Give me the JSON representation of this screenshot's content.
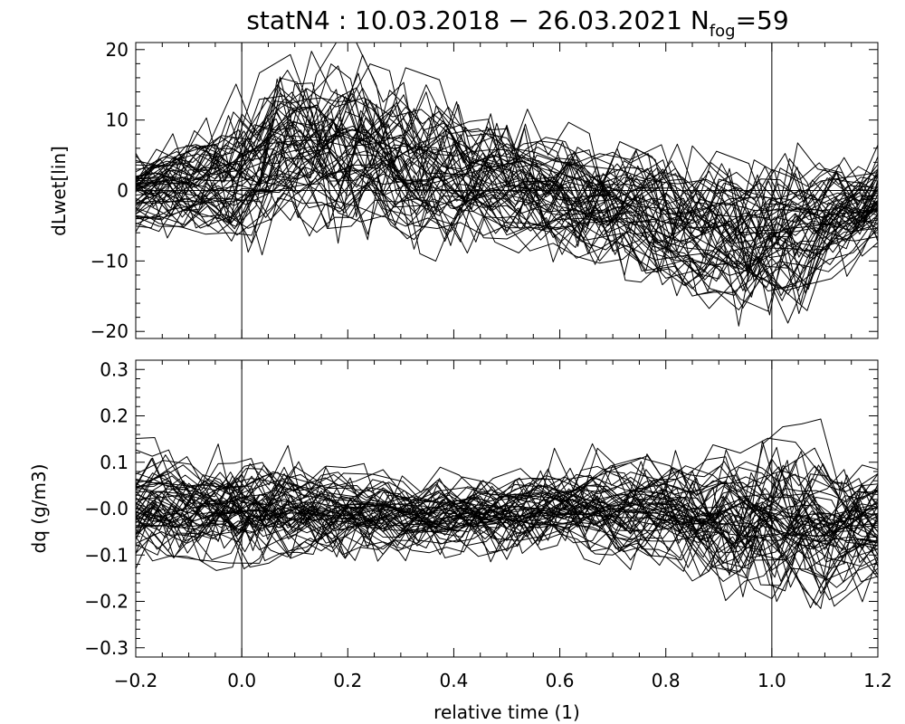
{
  "figure": {
    "title": {
      "prefix": "statN4 : 10.03.2018 − 26.03.2021 N",
      "subscript": "fog",
      "suffix": "=59"
    },
    "n_fog": 59
  },
  "chart_data": [
    {
      "type": "line",
      "name": "top-panel",
      "title": "statN4 : 10.03.2018 − 26.03.2021 N_fog=59",
      "xlabel": "",
      "ylabel": "dLwet[lin]",
      "xlim": [
        -0.2,
        1.2
      ],
      "ylim": [
        -21,
        21
      ],
      "x_ticks": [
        -0.2,
        0.0,
        0.2,
        0.4,
        0.6,
        0.8,
        1.0,
        1.2
      ],
      "y_ticks": [
        -20,
        -10,
        0,
        10,
        20
      ],
      "y_tick_labels": [
        "−20",
        "−10",
        "0",
        "10",
        "20"
      ],
      "x_tick_labels_shown": false,
      "reference_lines": {
        "vertical_x": [
          0.0,
          1.0
        ],
        "horizontal_y": [
          0
        ]
      },
      "series_count": 59,
      "series_style": "thin black lines, one per fog event",
      "envelope": {
        "x": [
          -0.2,
          0.0,
          0.1,
          0.3,
          0.5,
          0.7,
          0.85,
          0.95,
          1.05,
          1.2
        ],
        "median": [
          0,
          2,
          8,
          4,
          1,
          -2,
          -5,
          -7,
          -6,
          -2
        ],
        "spread": [
          4,
          8,
          10,
          9,
          7,
          7,
          8,
          9,
          8,
          5
        ]
      }
    },
    {
      "type": "line",
      "name": "bottom-panel",
      "xlabel": "relative time (1)",
      "ylabel": "dq (g/m3)",
      "xlim": [
        -0.2,
        1.2
      ],
      "ylim": [
        -0.32,
        0.32
      ],
      "x_ticks": [
        -0.2,
        0.0,
        0.2,
        0.4,
        0.6,
        0.8,
        1.0,
        1.2
      ],
      "x_tick_labels": [
        "−0.2",
        "0.0",
        "0.2",
        "0.4",
        "0.6",
        "0.8",
        "1.0",
        "1.2"
      ],
      "y_ticks": [
        -0.3,
        -0.2,
        -0.1,
        0.0,
        0.1,
        0.2,
        0.3
      ],
      "y_tick_labels": [
        "−0.3",
        "−0.2",
        "−0.1",
        "−0.0",
        "0.1",
        "0.2",
        "0.3"
      ],
      "reference_lines": {
        "vertical_x": [
          0.0,
          1.0
        ],
        "horizontal_y": []
      },
      "series_count": 59,
      "series_style": "thin black lines, one per fog event",
      "envelope": {
        "x": [
          -0.2,
          0.0,
          0.2,
          0.4,
          0.6,
          0.8,
          0.95,
          1.1,
          1.2
        ],
        "median": [
          0.0,
          0.0,
          -0.01,
          -0.02,
          0.0,
          0.0,
          -0.03,
          -0.04,
          -0.03
        ],
        "spread": [
          0.08,
          0.09,
          0.07,
          0.06,
          0.07,
          0.09,
          0.12,
          0.13,
          0.11
        ]
      }
    }
  ]
}
